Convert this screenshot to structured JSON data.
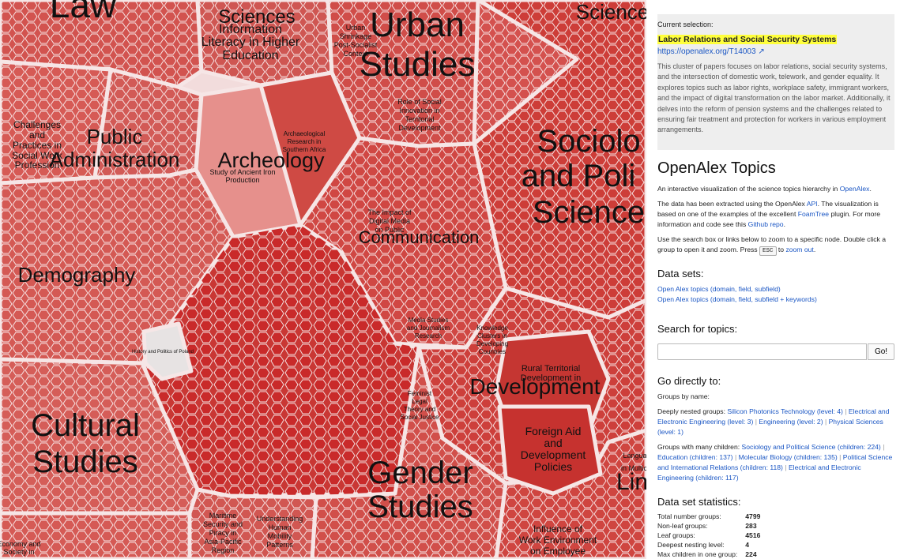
{
  "map": {
    "labels": [
      {
        "text": "Law",
        "size": 46
      },
      {
        "text": "Sciences",
        "size": 24
      },
      {
        "text": "Urban",
        "size": 44
      },
      {
        "text": "Studies",
        "size": 44
      },
      {
        "text": "Science",
        "size": 26
      },
      {
        "text": "Information",
        "size": 16
      },
      {
        "text": "Literacy in Higher",
        "size": 16
      },
      {
        "text": "Education",
        "size": 16
      },
      {
        "text": "Public",
        "size": 26
      },
      {
        "text": "Administration",
        "size": 26
      },
      {
        "text": "Archeology",
        "size": 27
      },
      {
        "text": "Sociolo",
        "size": 40
      },
      {
        "text": "and Poli",
        "size": 40
      },
      {
        "text": "Science",
        "size": 40
      },
      {
        "text": "Demography",
        "size": 26
      },
      {
        "text": "Communication",
        "size": 22
      },
      {
        "text": "Development",
        "size": 28
      },
      {
        "text": "Cultural",
        "size": 40
      },
      {
        "text": "Studies",
        "size": 40
      },
      {
        "text": "Gender",
        "size": 40
      },
      {
        "text": "Studies",
        "size": 40
      },
      {
        "text": "Lin",
        "size": 30
      },
      {
        "text": "Challenges",
        "size": 12
      },
      {
        "text": "and",
        "size": 12
      },
      {
        "text": "Practices in",
        "size": 12
      },
      {
        "text": "Social Work",
        "size": 12
      },
      {
        "text": "Profession",
        "size": 12
      },
      {
        "text": "Study of Ancient Iron",
        "size": 9
      },
      {
        "text": "Production",
        "size": 9
      },
      {
        "text": "Foreign Aid",
        "size": 14
      },
      {
        "text": "and",
        "size": 14
      },
      {
        "text": "Development",
        "size": 14
      },
      {
        "text": "Policies",
        "size": 14
      },
      {
        "text": "Rural Territorial",
        "size": 11
      },
      {
        "text": "Development in",
        "size": 11
      },
      {
        "text": "Maritime",
        "size": 9
      },
      {
        "text": "Security and",
        "size": 9
      },
      {
        "text": "Piracy in",
        "size": 9
      },
      {
        "text": "Asia-Pacific",
        "size": 9
      },
      {
        "text": "Region",
        "size": 9
      },
      {
        "text": "Understanding",
        "size": 9
      },
      {
        "text": "Human",
        "size": 9
      },
      {
        "text": "Mobility",
        "size": 9
      },
      {
        "text": "Patterns",
        "size": 9
      },
      {
        "text": "Influence of",
        "size": 12
      },
      {
        "text": "Work Environment",
        "size": 12
      },
      {
        "text": "on Employee",
        "size": 12
      },
      {
        "text": "History and Politics of Poland",
        "size": 6
      },
      {
        "text": "Role of Social",
        "size": 9
      },
      {
        "text": "Innovation in",
        "size": 9
      },
      {
        "text": "Territorial",
        "size": 9
      },
      {
        "text": "Development",
        "size": 9
      },
      {
        "text": "The Impact of",
        "size": 9
      },
      {
        "text": "Digital Media",
        "size": 9
      },
      {
        "text": "on Public",
        "size": 9
      },
      {
        "text": "Media Studies",
        "size": 8
      },
      {
        "text": "and Journalism",
        "size": 8
      },
      {
        "text": "Research",
        "size": 8
      },
      {
        "text": "Knowledge",
        "size": 8
      },
      {
        "text": "Clusters in",
        "size": 8
      },
      {
        "text": "Developing",
        "size": 8
      },
      {
        "text": "Countries",
        "size": 8
      },
      {
        "text": "Languag",
        "size": 9
      },
      {
        "text": "in Multicul",
        "size": 9
      },
      {
        "text": "Urban",
        "size": 9
      },
      {
        "text": "Shrinkage",
        "size": 9
      },
      {
        "text": "Post-Socialist",
        "size": 9
      },
      {
        "text": "Context",
        "size": 9
      },
      {
        "text": "Archaeological",
        "size": 8
      },
      {
        "text": "Research in",
        "size": 8
      },
      {
        "text": "Southern Africa",
        "size": 8
      },
      {
        "text": "Feminist",
        "size": 8
      },
      {
        "text": "Legal",
        "size": 8
      },
      {
        "text": "Theory and",
        "size": 8
      },
      {
        "text": "Social Justice",
        "size": 8
      },
      {
        "text": "Economy and",
        "size": 9
      },
      {
        "text": "Society in",
        "size": 9
      }
    ]
  },
  "panel": {
    "selection": {
      "caption": "Current selection:",
      "title": "Labor Relations and Social Security Systems",
      "link": "https://openalex.org/T14003",
      "description": "This cluster of papers focuses on labor relations, social security systems, and the intersection of domestic work, telework, and gender equality. It explores topics such as labor rights, workplace safety, immigrant workers, and the impact of digital transformation on the labor market. Additionally, it delves into the reform of pension systems and the challenges related to ensuring fair treatment and protection for workers in various employment arrangements."
    },
    "title": "OpenAlex Topics",
    "intro": {
      "pre": "An interactive visualization of the science topics hierarchy in ",
      "link": "OpenAlex",
      "post": "."
    },
    "data_para": {
      "t1": "The data has been extracted using the OpenAlex ",
      "l1": "API",
      "t2": ". The visualization is based on one of the examples of the excellent ",
      "l2": "FoamTree",
      "t3": " plugin. For more information and code see this ",
      "l3": "Github repo",
      "t4": "."
    },
    "usage": {
      "t1": "Use the search box or links below to zoom to a specific node. Double click a group to open it and zoom. Press ",
      "key": "ESC",
      "t2": " to ",
      "link": "zoom out",
      "t3": "."
    },
    "datasets": {
      "heading": "Data sets:",
      "items": [
        "Open Alex topics (domain, field, subfield)",
        "Open Alex topics (domain, field, subfield + keywords)"
      ]
    },
    "search": {
      "heading": "Search for topics:",
      "placeholder": "",
      "button": "Go!"
    },
    "goto": {
      "heading": "Go directly to:",
      "subheading": "Groups by name:",
      "nested_label": "Deeply nested groups: ",
      "nested": [
        "Silicon Photonics Technology (level: 4)",
        "Electrical and Electronic Engineering (level: 3)",
        "Engineering (level: 2)",
        "Physical Sciences (level: 1)"
      ],
      "many_label": "Groups with many children: ",
      "many": [
        "Sociology and Political Science (children: 224)",
        "Education (children: 137)",
        "Molecular Biology (children: 135)",
        "Political Science and International Relations (children: 118)",
        "Electrical and Electronic Engineering (children: 117)"
      ]
    },
    "stats": {
      "heading": "Data set statistics:",
      "rows": [
        {
          "label": "Total number groups:",
          "value": "4799"
        },
        {
          "label": "Non-leaf groups:",
          "value": "283"
        },
        {
          "label": "Leaf groups:",
          "value": "4516"
        },
        {
          "label": "Deepest nesting level:",
          "value": "4"
        },
        {
          "label": "Max children in one group:",
          "value": "224"
        }
      ]
    }
  }
}
